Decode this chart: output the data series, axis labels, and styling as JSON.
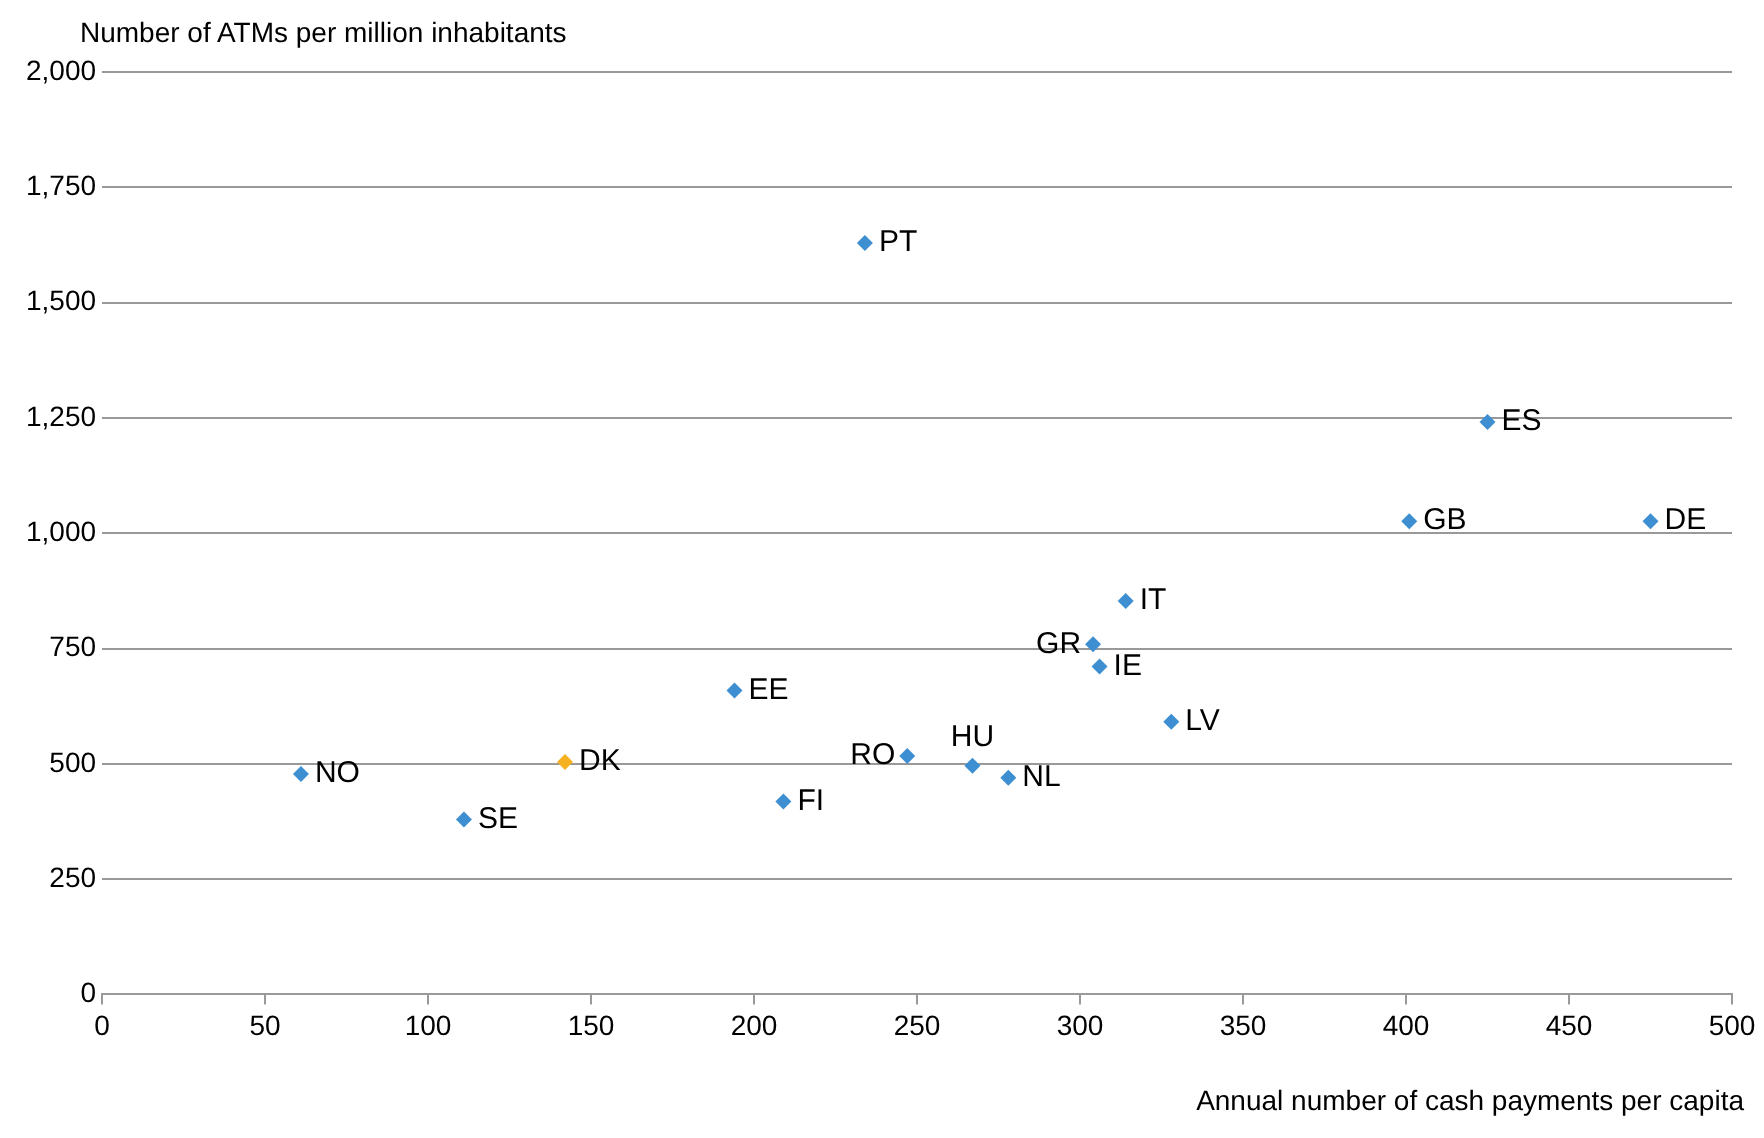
{
  "chart_data": {
    "type": "scatter",
    "ylabel": "Number of ATMs per million inhabitants",
    "xlabel": "Annual number of cash payments per capita",
    "series": [
      {
        "color": "#3d8fd1",
        "x": [
          61,
          111,
          194,
          209,
          234,
          247,
          267,
          278,
          304,
          306,
          314,
          328,
          401,
          425,
          475
        ],
        "values": [
          478,
          379,
          659,
          418,
          1629,
          517,
          496,
          470,
          759,
          711,
          853,
          591,
          1026,
          1241,
          1026
        ]
      },
      {
        "color": "#f5b120",
        "x": [
          142
        ],
        "values": [
          504
        ]
      }
    ],
    "annotations": [
      {
        "text": "NO",
        "x": 61,
        "y": 478
      },
      {
        "text": "SE",
        "x": 111,
        "y": 379
      },
      {
        "text": "DK",
        "x": 142,
        "y": 504
      },
      {
        "text": "EE",
        "x": 194,
        "y": 659
      },
      {
        "text": "FI",
        "x": 209,
        "y": 418
      },
      {
        "text": "PT",
        "x": 234,
        "y": 1629
      },
      {
        "text": "RO",
        "x": 247,
        "y": 517
      },
      {
        "text": "HU",
        "x": 267,
        "y": 496
      },
      {
        "text": "NL",
        "x": 278,
        "y": 470
      },
      {
        "text": "GR",
        "x": 304,
        "y": 759
      },
      {
        "text": "IE",
        "x": 306,
        "y": 711
      },
      {
        "text": "IT",
        "x": 314,
        "y": 853
      },
      {
        "text": "LV",
        "x": 328,
        "y": 591
      },
      {
        "text": "GB",
        "x": 401,
        "y": 1026
      },
      {
        "text": "ES",
        "x": 425,
        "y": 1241
      },
      {
        "text": "DE",
        "x": 475,
        "y": 1026
      }
    ],
    "xlim": [
      0,
      500
    ],
    "xticks": [
      0,
      50,
      100,
      150,
      200,
      250,
      300,
      350,
      400,
      450,
      500
    ],
    "ylim": [
      0,
      2000
    ],
    "yticks": [
      0,
      250,
      500,
      750,
      {
        "value": 1000,
        "label": "1,000"
      },
      {
        "value": 1250,
        "label": "1,250"
      },
      {
        "value": 1500,
        "label": "1,500"
      },
      {
        "value": 1750,
        "label": "1,750"
      },
      {
        "value": 2000,
        "label": "2,000"
      }
    ],
    "grid": "y",
    "legend": false,
    "marker": "diamond"
  }
}
